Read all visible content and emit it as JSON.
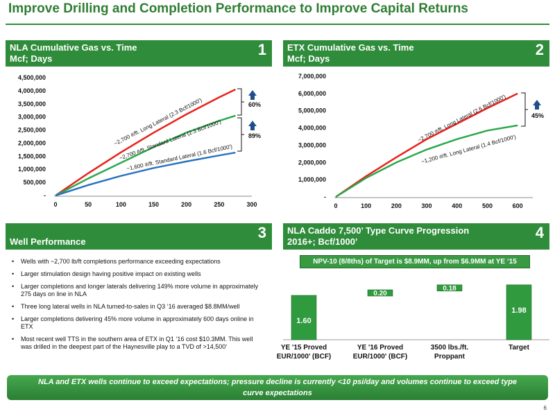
{
  "page_title": "Improve Drilling and Completion Performance to Improve Capital Returns",
  "panels": {
    "p1": {
      "line1": "NLA Cumulative Gas vs. Time",
      "line2": "Mcf; Days",
      "num": "1"
    },
    "p2": {
      "line1": "ETX Cumulative Gas vs. Time",
      "line2": "Mcf; Days",
      "num": "2"
    },
    "p3": {
      "line2": "Well Performance",
      "num": "3"
    },
    "p4": {
      "line1": "NLA Caddo 7,500’ Type Curve Progression",
      "line2": "2016+; Bcf/1000’",
      "num": "4"
    }
  },
  "chart_data": [
    {
      "type": "line",
      "panel": "NLA",
      "xlim": [
        0,
        300
      ],
      "ylim": [
        0,
        4500000
      ],
      "x_ticks": [
        "0",
        "50",
        "100",
        "150",
        "200",
        "250",
        "300"
      ],
      "y_ticks": [
        "-",
        "500,000",
        "1,000,000",
        "1,500,000",
        "2,000,000",
        "2,500,000",
        "3,000,000",
        "3,500,000",
        "4,000,000",
        "4,500,000"
      ],
      "grid": false,
      "series": [
        {
          "name": "~2,700 #/ft. Long Lateral (2.3 Bcf/1000')",
          "color": "#e8211b",
          "x": [
            0,
            50,
            100,
            150,
            200,
            250,
            275
          ],
          "y": [
            0,
            850000,
            1650000,
            2400000,
            3100000,
            3750000,
            4050000
          ]
        },
        {
          "name": "~2,700 #/ft. Standard Lateral (2.3 Bcf/1000')",
          "color": "#2aa84a",
          "x": [
            0,
            50,
            100,
            150,
            200,
            250,
            275
          ],
          "y": [
            0,
            650000,
            1250000,
            1850000,
            2400000,
            2850000,
            3050000
          ]
        },
        {
          "name": "~1,600 #/ft. Standard Lateral (1.6 Bcf/1000')",
          "color": "#2a73c0",
          "x": [
            0,
            50,
            100,
            150,
            200,
            250,
            275
          ],
          "y": [
            0,
            400000,
            750000,
            1050000,
            1300000,
            1530000,
            1640000
          ]
        }
      ],
      "annotations": [
        "60%",
        "89%"
      ]
    },
    {
      "type": "line",
      "panel": "ETX",
      "xlim": [
        0,
        650
      ],
      "ylim": [
        0,
        7000000
      ],
      "x_ticks": [
        "0",
        "100",
        "200",
        "300",
        "400",
        "500",
        "600"
      ],
      "y_ticks": [
        "-",
        "1,000,000",
        "2,000,000",
        "3,000,000",
        "4,000,000",
        "5,000,000",
        "6,000,000",
        "7,000,000"
      ],
      "grid": false,
      "series": [
        {
          "name": "~2,700 #/ft. Long Lateral (2.6 Bcf/1000')",
          "color": "#e8211b",
          "x": [
            0,
            100,
            200,
            300,
            400,
            500,
            600
          ],
          "y": [
            0,
            1200000,
            2300000,
            3350000,
            4250000,
            5150000,
            6000000
          ]
        },
        {
          "name": "~1,200 #/ft. Long Lateral (1.4 Bcf/1000')",
          "color": "#2aa84a",
          "x": [
            0,
            100,
            200,
            300,
            400,
            500,
            600
          ],
          "y": [
            0,
            1100000,
            2000000,
            2750000,
            3350000,
            3850000,
            4150000
          ]
        }
      ],
      "annotations": [
        "45%"
      ]
    },
    {
      "type": "bar",
      "panel": "NLA Caddo 7,500' Type Curve Progression",
      "subtype": "waterfall",
      "categories": [
        [
          "YE '15 Proved",
          "EUR/1000' (BCF)"
        ],
        [
          "YE '16 Proved",
          "EUR/1000' (BCF)"
        ],
        [
          "3500 lbs./ft.",
          "Proppant"
        ],
        [
          "Target"
        ]
      ],
      "values": [
        1.6,
        0.2,
        0.18,
        1.98
      ],
      "labels": [
        "1.60",
        "0.20",
        "0.18",
        "1.98"
      ],
      "ylim": [
        0,
        2.3
      ],
      "color": "#2f9a3e",
      "note": "NPV-10 (8/8ths) of Target is $8.9MM, up from $6.9MM at YE ‘15"
    }
  ],
  "bullets": [
    "Wells with ~2,700 lb/ft completions performance exceeding expectations",
    "Larger stimulation design having positive impact on existing wells",
    "Larger completions and longer laterals delivering 149% more volume in approximately 275 days on line in NLA",
    "Three long lateral wells in NLA turned-to-sales in Q3 ‘16 averaged $8.8MM/well",
    "Larger completions delivering 45% more volume in approximately 600 days online in ETX",
    "Most recent well TTS in the southern area of ETX in Q1 ‘16 cost $10.3MM. This well was drilled in the deepest part of the Haynesville play to a TVD of >14,500’"
  ],
  "banner": "NLA and ETX wells continue to exceed expectations; pressure decline is currently <10 psi/day and volumes continue to exceed type curve expectations",
  "page_number": "6",
  "colors": {
    "brand_green": "#2f8c3a",
    "arrow_blue": "#1f4e8c"
  }
}
